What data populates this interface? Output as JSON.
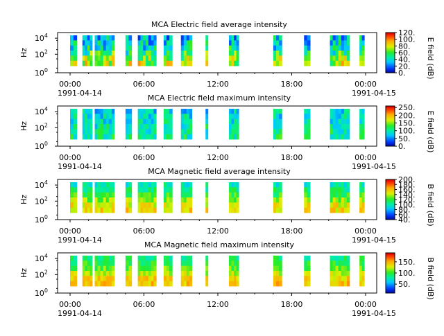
{
  "chart_data": [
    {
      "type": "heatmap",
      "title": "MCA  Electric field average intensity",
      "ylabel": "Hz",
      "y_scale": "log",
      "yticks": [
        "10^0",
        "10^2",
        "10^4"
      ],
      "xticks": [
        "00:00",
        "06:00",
        "12:00",
        "18:00",
        "00:00"
      ],
      "xdates": [
        "1991-04-14",
        "1991-04-15"
      ],
      "colorbar_label": "E field (dB)",
      "colorbar_ticks": [
        "0.",
        "20.",
        "40.",
        "60.",
        "80.",
        "100.",
        "120."
      ],
      "colorbar_range": [
        0,
        120
      ],
      "palette": "rainbow",
      "time_blocks": [
        [
          0.0,
          0.55
        ],
        [
          1.0,
          1.8
        ],
        [
          2.0,
          3.6
        ],
        [
          4.5,
          5.0
        ],
        [
          5.5,
          7.0
        ],
        [
          7.6,
          8.3
        ],
        [
          9.0,
          9.9
        ],
        [
          11.0,
          11.2
        ],
        [
          12.9,
          13.7
        ],
        [
          16.5,
          17.2
        ],
        [
          19.0,
          19.5
        ],
        [
          21.1,
          22.7
        ],
        [
          23.5,
          23.9
        ]
      ],
      "level_profile": [
        75,
        70,
        55,
        45,
        40,
        35
      ],
      "level_variation": 25
    },
    {
      "type": "heatmap",
      "title": "MCA  Electric field maximum intensity",
      "ylabel": "Hz",
      "y_scale": "log",
      "yticks": [
        "10^0",
        "10^2",
        "10^4"
      ],
      "xticks": [
        "00:00",
        "06:00",
        "12:00",
        "18:00",
        "00:00"
      ],
      "xdates": [
        "1991-04-14",
        "1991-04-15"
      ],
      "colorbar_label": "E field (dB)",
      "colorbar_ticks": [
        "0.",
        "50.",
        "100.",
        "150.",
        "200.",
        "250."
      ],
      "colorbar_range": [
        0,
        260
      ],
      "palette": "rainbow",
      "time_blocks": [
        [
          0.0,
          0.55
        ],
        [
          1.0,
          1.8
        ],
        [
          2.0,
          3.6
        ],
        [
          4.5,
          5.0
        ],
        [
          5.5,
          7.0
        ],
        [
          7.6,
          8.3
        ],
        [
          9.0,
          9.9
        ],
        [
          11.0,
          11.2
        ],
        [
          12.9,
          13.7
        ],
        [
          16.5,
          17.2
        ],
        [
          19.0,
          19.5
        ],
        [
          21.1,
          22.7
        ],
        [
          23.5,
          23.9
        ]
      ],
      "level_profile": [
        110,
        105,
        100,
        95,
        90,
        85
      ],
      "level_variation": 35
    },
    {
      "type": "heatmap",
      "title": "MCA  Magnetic field average intensity",
      "ylabel": "Hz",
      "y_scale": "log",
      "yticks": [
        "10^0",
        "10^2",
        "10^4"
      ],
      "xticks": [
        "00:00",
        "06:00",
        "12:00",
        "18:00",
        "00:00"
      ],
      "xdates": [
        "1991-04-14",
        "1991-04-15"
      ],
      "colorbar_label": "B field (dB)",
      "colorbar_ticks": [
        "40.",
        "60.",
        "80.",
        "100.",
        "120.",
        "140.",
        "160.",
        "180.",
        "200."
      ],
      "colorbar_range": [
        40,
        200
      ],
      "palette": "rainbow",
      "time_blocks": [
        [
          0.0,
          0.55
        ],
        [
          1.0,
          1.8
        ],
        [
          2.0,
          3.6
        ],
        [
          4.5,
          5.0
        ],
        [
          5.5,
          7.0
        ],
        [
          7.6,
          8.3
        ],
        [
          9.0,
          9.9
        ],
        [
          11.0,
          11.2
        ],
        [
          12.9,
          13.7
        ],
        [
          16.5,
          17.2
        ],
        [
          19.0,
          19.5
        ],
        [
          21.1,
          22.7
        ],
        [
          23.5,
          23.9
        ]
      ],
      "level_profile": [
        155,
        150,
        135,
        120,
        110,
        100
      ],
      "level_variation": 15
    },
    {
      "type": "heatmap",
      "title": "MCA  Magnetic field maximum intensity",
      "ylabel": "Hz",
      "y_scale": "log",
      "yticks": [
        "10^0",
        "10^2",
        "10^4"
      ],
      "xticks": [
        "00:00",
        "06:00",
        "12:00",
        "18:00",
        "00:00"
      ],
      "xdates": [
        "1991-04-14",
        "1991-04-15"
      ],
      "colorbar_label": "B field (dB)",
      "colorbar_ticks": [
        "50.",
        "100.",
        "150."
      ],
      "colorbar_range": [
        10,
        190
      ],
      "palette": "rainbow",
      "time_blocks": [
        [
          0.0,
          0.55
        ],
        [
          1.0,
          1.8
        ],
        [
          2.0,
          3.6
        ],
        [
          4.5,
          5.0
        ],
        [
          5.5,
          7.0
        ],
        [
          7.6,
          8.3
        ],
        [
          9.0,
          9.9
        ],
        [
          11.0,
          11.2
        ],
        [
          12.9,
          13.7
        ],
        [
          16.5,
          17.2
        ],
        [
          19.0,
          19.5
        ],
        [
          21.1,
          22.7
        ],
        [
          23.5,
          23.9
        ]
      ],
      "level_profile": [
        145,
        140,
        125,
        110,
        100,
        90
      ],
      "level_variation": 15
    }
  ]
}
